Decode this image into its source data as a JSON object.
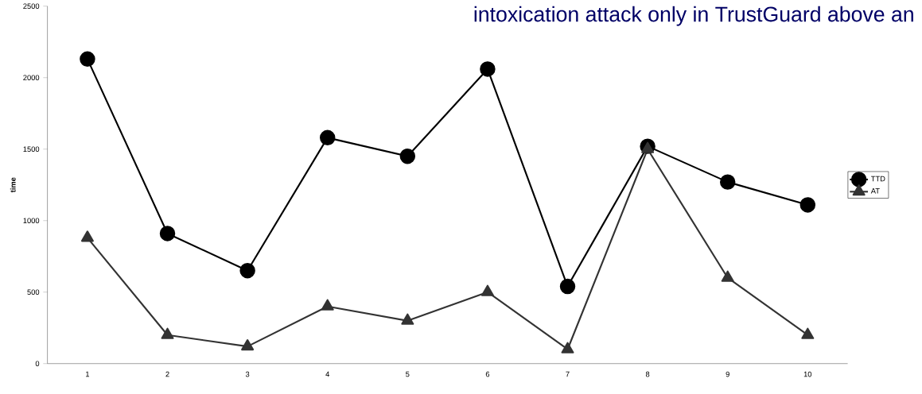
{
  "chart_data": {
    "type": "line",
    "title": "intoxication attack only in TrustGuard above an",
    "ylabel": "time",
    "categories": [
      "1",
      "2",
      "3",
      "4",
      "5",
      "6",
      "7",
      "8",
      "9",
      "10"
    ],
    "series": [
      {
        "name": "TTD",
        "color": "#000000",
        "marker": "circle",
        "values": [
          2130,
          910,
          650,
          1580,
          1450,
          2060,
          540,
          1520,
          1270,
          1110
        ]
      },
      {
        "name": "AT",
        "color": "#333333",
        "marker": "triangle",
        "values": [
          880,
          200,
          120,
          400,
          300,
          500,
          100,
          1500,
          600,
          200
        ]
      }
    ],
    "ylim": [
      0,
      2500
    ],
    "yticks": [
      0,
      500,
      1000,
      1500,
      2000,
      2500
    ],
    "grid": false,
    "legend": "right",
    "line_style": "solid"
  }
}
